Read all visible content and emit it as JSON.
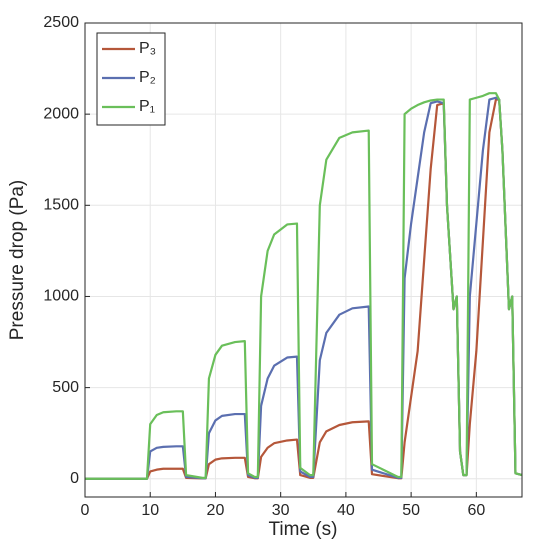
{
  "chart_data": {
    "type": "line",
    "xlabel": "Time (s)",
    "ylabel": "Pressure drop (Pa)",
    "x": [
      0,
      9,
      9.5,
      10,
      11,
      12,
      14,
      15,
      15.5,
      18,
      18.5,
      19,
      20,
      21,
      23,
      24.5,
      25,
      26,
      26.5,
      27,
      28,
      29,
      31,
      32.5,
      33,
      34.5,
      35,
      36,
      37,
      39,
      41,
      43.5,
      44,
      48,
      48.5,
      49,
      50,
      51,
      52,
      53,
      54,
      55,
      55.5,
      56.5,
      57,
      57.5,
      58,
      58.5,
      59,
      60,
      61,
      62,
      63,
      63.5,
      64,
      65,
      65.5,
      66,
      67
    ],
    "series": [
      {
        "name": "P₃",
        "color": "#b5573a",
        "values": [
          0,
          0,
          0,
          40,
          50,
          55,
          55,
          55,
          5,
          2,
          2,
          80,
          105,
          112,
          115,
          115,
          10,
          3,
          3,
          120,
          170,
          195,
          210,
          215,
          20,
          5,
          5,
          200,
          260,
          295,
          310,
          315,
          25,
          3,
          3,
          200,
          450,
          700,
          1200,
          1700,
          2050,
          2060,
          1500,
          930,
          1000,
          150,
          20,
          20,
          300,
          700,
          1300,
          1900,
          2080,
          2080,
          1800,
          930,
          1000,
          30,
          20
        ]
      },
      {
        "name": "P₂",
        "color": "#5b6fb0",
        "values": [
          0,
          0,
          0,
          150,
          170,
          175,
          178,
          178,
          10,
          3,
          3,
          250,
          320,
          345,
          355,
          355,
          20,
          5,
          5,
          400,
          550,
          620,
          665,
          670,
          40,
          10,
          10,
          650,
          800,
          900,
          935,
          945,
          50,
          5,
          5,
          1100,
          1400,
          1650,
          1900,
          2060,
          2070,
          2060,
          1500,
          930,
          1000,
          150,
          20,
          20,
          1000,
          1400,
          1800,
          2080,
          2090,
          2080,
          1800,
          930,
          1000,
          30,
          20
        ]
      },
      {
        "name": "P₁",
        "color": "#6abf5a",
        "values": [
          0,
          0,
          0,
          300,
          350,
          365,
          370,
          370,
          20,
          5,
          5,
          550,
          680,
          730,
          750,
          755,
          30,
          10,
          10,
          1000,
          1250,
          1340,
          1395,
          1400,
          60,
          20,
          20,
          1500,
          1750,
          1870,
          1900,
          1910,
          80,
          10,
          10,
          2000,
          2030,
          2050,
          2065,
          2075,
          2080,
          2080,
          1500,
          930,
          1000,
          150,
          20,
          20,
          2080,
          2090,
          2100,
          2115,
          2115,
          2080,
          1800,
          930,
          1000,
          30,
          20
        ]
      }
    ],
    "xlim": [
      0,
      67
    ],
    "xticks": [
      0,
      10,
      20,
      30,
      40,
      50,
      60
    ],
    "ylim": [
      -100,
      2500
    ],
    "yticks": [
      0,
      500,
      1000,
      1500,
      2000,
      2500
    ],
    "grid": true,
    "legend": "upper left"
  }
}
